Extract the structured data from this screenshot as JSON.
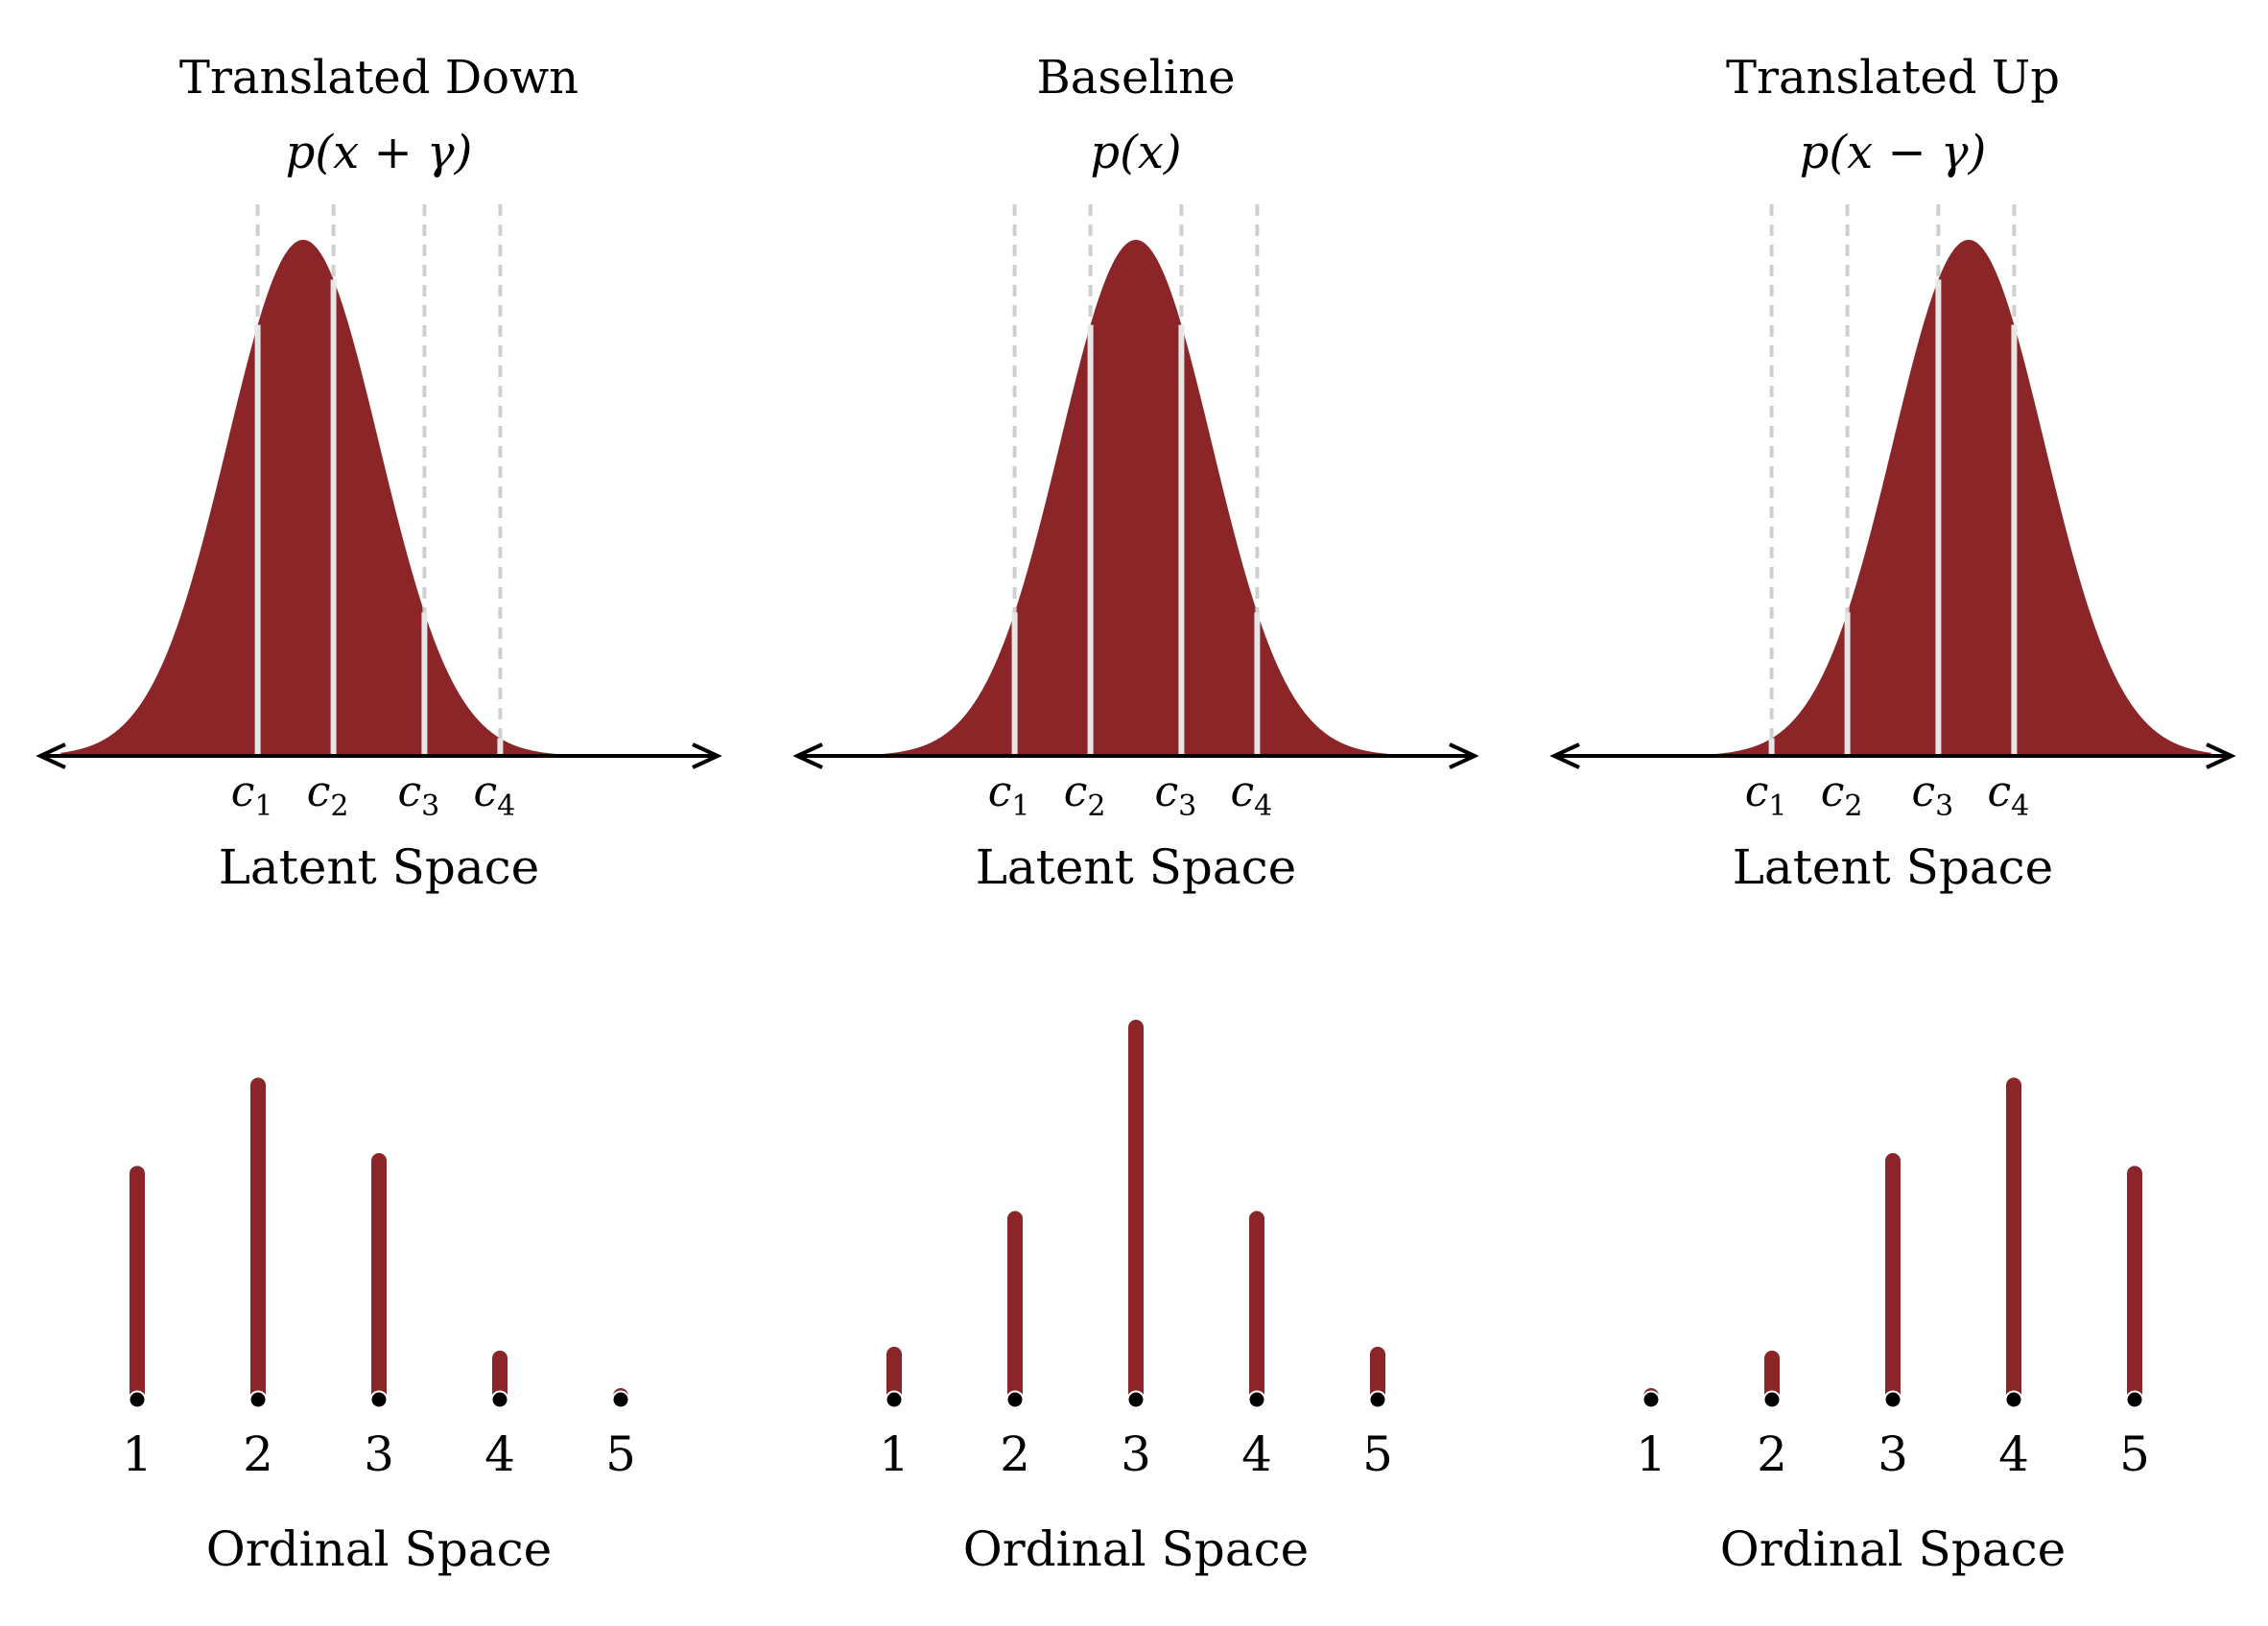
{
  "panels": [
    {
      "id": "translated-down",
      "title": "Translated Down",
      "formula": "p(x + γ)",
      "shift": -1,
      "latent_label": "Latent Space",
      "ordinal_label": "Ordinal Space"
    },
    {
      "id": "baseline",
      "title": "Baseline",
      "formula": "p(x)",
      "shift": 0,
      "latent_label": "Latent Space",
      "ordinal_label": "Ordinal Space"
    },
    {
      "id": "translated-up",
      "title": "Translated Up",
      "formula": "p(x − γ)",
      "shift": 1,
      "latent_label": "Latent Space",
      "ordinal_label": "Ordinal Space"
    }
  ],
  "cutpoints": [
    {
      "letter": "c",
      "sub": "1",
      "value": -1.6
    },
    {
      "letter": "c",
      "sub": "2",
      "value": -0.6
    },
    {
      "letter": "c",
      "sub": "3",
      "value": 0.6
    },
    {
      "letter": "c",
      "sub": "4",
      "value": 1.6
    }
  ],
  "categories": [
    "1",
    "2",
    "3",
    "4",
    "5"
  ],
  "colors": {
    "fill": "#8b2527",
    "axis": "#000000",
    "cut_guide": "#cfcfcf",
    "cut_gap": "#e6e6e6"
  }
}
